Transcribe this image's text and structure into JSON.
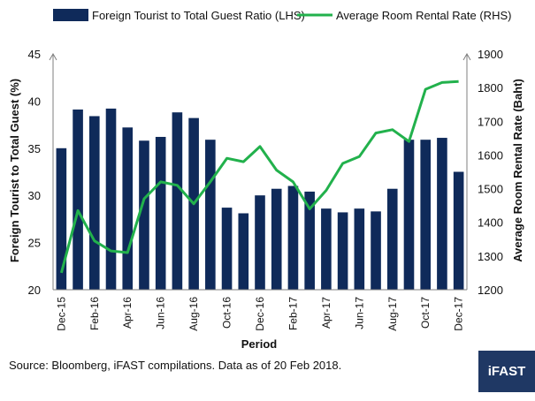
{
  "chart_data": {
    "type": "bar+line",
    "categories": [
      "Dec-15",
      "Jan-16",
      "Feb-16",
      "Mar-16",
      "Apr-16",
      "May-16",
      "Jun-16",
      "Jul-16",
      "Aug-16",
      "Sep-16",
      "Oct-16",
      "Nov-16",
      "Dec-16",
      "Jan-17",
      "Feb-17",
      "Mar-17",
      "Apr-17",
      "May-17",
      "Jun-17",
      "Jul-17",
      "Aug-17",
      "Sep-17",
      "Oct-17",
      "Nov-17",
      "Dec-17"
    ],
    "tick_labels": [
      "Dec-15",
      "Feb-16",
      "Apr-16",
      "Jun-16",
      "Aug-16",
      "Oct-16",
      "Dec-16",
      "Feb-17",
      "Apr-17",
      "Jun-17",
      "Aug-17",
      "Oct-17",
      "Dec-17"
    ],
    "series": [
      {
        "name": "Foreign Tourist to Total Guest Ratio (LHS)",
        "type": "bar",
        "axis": "left",
        "color": "#0f2a5a",
        "values": [
          35.0,
          39.1,
          38.4,
          39.2,
          37.2,
          35.8,
          36.2,
          38.8,
          38.2,
          35.9,
          28.7,
          28.1,
          30.0,
          30.7,
          31.0,
          30.4,
          28.6,
          28.2,
          28.6,
          28.3,
          30.7,
          35.9,
          35.9,
          36.1,
          32.5
        ]
      },
      {
        "name": "Average Room Rental Rate (RHS)",
        "type": "line",
        "axis": "right",
        "color": "#22b14c",
        "values": [
          1250,
          1435,
          1345,
          1315,
          1310,
          1470,
          1520,
          1510,
          1455,
          1520,
          1590,
          1580,
          1625,
          1555,
          1520,
          1440,
          1495,
          1575,
          1595,
          1665,
          1675,
          1640,
          1795,
          1815,
          1818
        ]
      }
    ],
    "y_left": {
      "label": "Foreign Tourist to Total Guest (%)",
      "min": 20,
      "max": 45,
      "ticks": [
        "20",
        "25",
        "30",
        "35",
        "40",
        "45"
      ]
    },
    "y_right": {
      "label": "Average Room Rental Rate (Baht)",
      "min": 1200,
      "max": 1900,
      "ticks": [
        "1200",
        "1300",
        "1400",
        "1500",
        "1600",
        "1700",
        "1800",
        "1900"
      ]
    },
    "xlabel": "Period",
    "legend_position": "top",
    "grid": false
  },
  "footer": {
    "source": "Source: Bloomberg, iFAST compilations. Data as of 20 Feb 2018.",
    "logo": "iFAST"
  }
}
